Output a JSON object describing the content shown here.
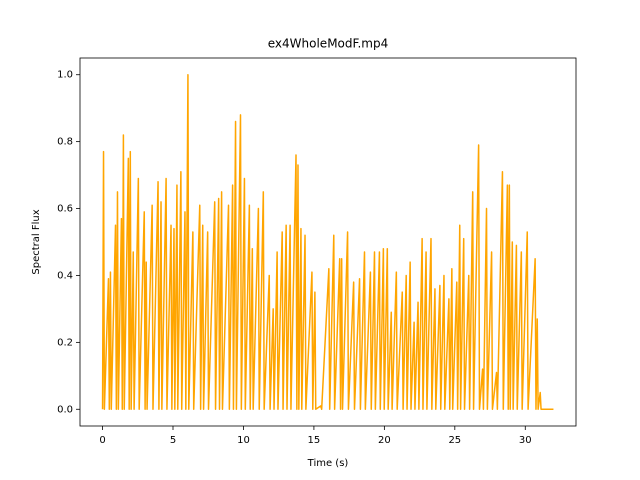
{
  "chart_data": {
    "type": "line",
    "title": "ex4WholeModF.mp4",
    "x_label": "Time (s)",
    "y_label": "Spectral Flux",
    "color": "#ffa500",
    "x": [
      0,
      0.07,
      0.13,
      0.42,
      0.48,
      0.56,
      0.62,
      0.92,
      0.98,
      1.06,
      1.12,
      1.34,
      1.4,
      1.48,
      1.54,
      1.83,
      1.89,
      1.97,
      2.03,
      2.18,
      2.24,
      2.54,
      2.6,
      2.96,
      3.02,
      3.1,
      3.16,
      3.52,
      3.58,
      3.94,
      4.0,
      4.15,
      4.21,
      4.51,
      4.57,
      4.86,
      4.92,
      5.07,
      5.13,
      5.28,
      5.34,
      5.56,
      5.62,
      5.85,
      5.91,
      6.06,
      6.12,
      6.41,
      6.47,
      6.9,
      6.96,
      7.11,
      7.17,
      7.46,
      7.52,
      7.96,
      8.02,
      8.24,
      8.3,
      8.45,
      8.51,
      8.94,
      9.0,
      9.23,
      9.29,
      9.44,
      9.5,
      9.79,
      9.85,
      10.07,
      10.13,
      10.42,
      10.48,
      10.63,
      10.69,
      11.06,
      11.12,
      11.41,
      11.47,
      11.83,
      11.89,
      12.11,
      12.17,
      12.39,
      12.45,
      12.75,
      12.81,
      13.03,
      13.09,
      13.31,
      13.37,
      13.73,
      13.79,
      13.87,
      13.93,
      14.08,
      14.14,
      14.37,
      14.43,
      14.86,
      14.92,
      15.07,
      15.13,
      15.49,
      15.55,
      16.06,
      16.12,
      16.41,
      16.47,
      16.83,
      16.89,
      16.97,
      17.03,
      17.39,
      17.45,
      17.82,
      17.88,
      18.24,
      18.3,
      18.59,
      18.65,
      19.01,
      19.07,
      19.3,
      19.36,
      19.65,
      19.71,
      19.93,
      19.99,
      20.21,
      20.27,
      20.49,
      20.55,
      20.85,
      20.91,
      21.27,
      21.33,
      21.55,
      21.61,
      21.83,
      21.89,
      22.11,
      22.17,
      22.39,
      22.45,
      22.68,
      22.74,
      22.96,
      23.02,
      23.31,
      23.37,
      23.59,
      23.65,
      23.94,
      24.0,
      24.23,
      24.29,
      24.58,
      24.64,
      24.79,
      24.85,
      25.14,
      25.2,
      25.35,
      25.41,
      25.63,
      25.69,
      25.99,
      26.05,
      26.27,
      26.33,
      26.69,
      26.75,
      26.97,
      27.03,
      27.25,
      27.31,
      27.61,
      27.67,
      27.96,
      28.02,
      28.38,
      28.44,
      28.73,
      28.79,
      28.87,
      28.93,
      29.08,
      29.14,
      29.37,
      29.43,
      29.72,
      29.78,
      30.14,
      30.2,
      30.7,
      30.76,
      30.85,
      30.91,
      31.06,
      31.12,
      32
    ],
    "values": [
      0,
      0.77,
      0,
      0.39,
      0,
      0.41,
      0,
      0.55,
      0,
      0.65,
      0,
      0.57,
      0,
      0.82,
      0,
      0.75,
      0,
      0.77,
      0,
      0.47,
      0,
      0.69,
      0,
      0.59,
      0,
      0.44,
      0,
      0.61,
      0,
      0.68,
      0,
      0.62,
      0,
      0.69,
      0,
      0.55,
      0,
      0.54,
      0,
      0.67,
      0,
      0.71,
      0,
      0.59,
      0,
      1.0,
      0,
      0.53,
      0,
      0.61,
      0,
      0.55,
      0,
      0.53,
      0,
      0.62,
      0,
      0.63,
      0,
      0.65,
      0,
      0.61,
      0,
      0.67,
      0,
      0.86,
      0,
      0.88,
      0,
      0.69,
      0,
      0.61,
      0,
      0.48,
      0,
      0.6,
      0,
      0.65,
      0,
      0.4,
      0,
      0.3,
      0,
      0.47,
      0,
      0.53,
      0,
      0.55,
      0,
      0.55,
      0,
      0.76,
      0,
      0.73,
      0,
      0.54,
      0,
      0.52,
      0,
      0.41,
      0,
      0.35,
      0,
      0.01,
      0,
      0.42,
      0,
      0.52,
      0,
      0.45,
      0,
      0.45,
      0,
      0.53,
      0,
      0.38,
      0,
      0.39,
      0,
      0.47,
      0,
      0.41,
      0,
      0.47,
      0,
      0.47,
      0,
      0.48,
      0,
      0.48,
      0,
      0.29,
      0,
      0.41,
      0,
      0.35,
      0,
      0.4,
      0,
      0.44,
      0,
      0.26,
      0,
      0.32,
      0,
      0.51,
      0,
      0.47,
      0,
      0.51,
      0,
      0.36,
      0,
      0.37,
      0,
      0.4,
      0,
      0.33,
      0,
      0.42,
      0,
      0.38,
      0,
      0.55,
      0,
      0.51,
      0,
      0.4,
      0,
      0.65,
      0,
      0.79,
      0,
      0.12,
      0,
      0.6,
      0,
      0.47,
      0,
      0.11,
      0,
      0.71,
      0,
      0.67,
      0,
      0.67,
      0,
      0.5,
      0,
      0.49,
      0,
      0.47,
      0,
      0.53,
      0,
      0.45,
      0,
      0.27,
      0,
      0.05,
      0,
      0
    ],
    "xlim": [
      -1.6,
      33.6
    ],
    "xticks": [
      0,
      5,
      10,
      15,
      20,
      25,
      30
    ],
    "ylim": [
      -0.05,
      1.05
    ],
    "yticks": [
      {
        "value": 0,
        "label": "0.0"
      },
      0.2,
      0.4,
      0.6,
      0.8,
      {
        "value": 1,
        "label": "1.0"
      }
    ],
    "grid": false
  }
}
